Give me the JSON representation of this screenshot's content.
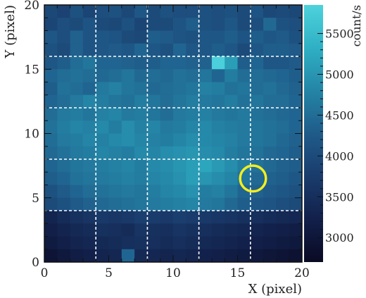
{
  "chart_data": {
    "type": "heatmap",
    "title": "",
    "xlabel": "X (pixel)",
    "ylabel": "Y (pixel)",
    "colorbar_label": "count/s",
    "xlim": [
      0,
      20
    ],
    "ylim": [
      0,
      20
    ],
    "x_ticks": [
      0,
      5,
      10,
      15,
      20
    ],
    "y_ticks": [
      0,
      5,
      10,
      15,
      20
    ],
    "colorbar_range": [
      2700,
      5850
    ],
    "colorbar_ticks": [
      3000,
      3500,
      4000,
      4500,
      5000,
      5500
    ],
    "colormap": [
      "#0a0a23",
      "#12204a",
      "#1a3c6c",
      "#1f5b8a",
      "#2485a6",
      "#2fb0c4",
      "#4ed2dc"
    ],
    "grid": {
      "on": true,
      "style": "white dashed",
      "x_lines": [
        4,
        8,
        12,
        16
      ],
      "y_lines": [
        4,
        8,
        12,
        16
      ]
    },
    "marker": {
      "shape": "circle",
      "center_x": 16.2,
      "center_y": 6.5,
      "radius": 1.0,
      "color": "#f2ee1f"
    },
    "rows_note": "values[0] is the top row (y 19-20), values[19] is the bottom row (y 0-1); each row has 20 pixels x 0..19",
    "values": [
      [
        3950,
        3850,
        4100,
        3900,
        4050,
        4100,
        3950,
        4200,
        4000,
        4100,
        4050,
        4050,
        4100,
        4050,
        4100,
        4000,
        4150,
        3950,
        4000,
        3950
      ],
      [
        3900,
        4050,
        4000,
        4150,
        4000,
        3950,
        4100,
        3900,
        4000,
        4000,
        4150,
        4300,
        4100,
        4050,
        4200,
        4000,
        4050,
        4450,
        4100,
        4050
      ],
      [
        4200,
        4050,
        4350,
        4150,
        4200,
        4150,
        4000,
        3950,
        4300,
        4250,
        4150,
        4100,
        4200,
        4200,
        4300,
        4150,
        4300,
        4200,
        4250,
        4100
      ],
      [
        4100,
        4000,
        4350,
        4150,
        4200,
        4250,
        4200,
        4400,
        4200,
        4100,
        4400,
        4200,
        4200,
        4300,
        4200,
        4000,
        4200,
        4300,
        4300,
        4250
      ],
      [
        4200,
        4300,
        4500,
        4600,
        4400,
        4400,
        4350,
        4300,
        4300,
        4400,
        4400,
        4350,
        4350,
        5800,
        5100,
        4300,
        4400,
        4200,
        4200,
        4250
      ],
      [
        4400,
        4500,
        4550,
        4500,
        4450,
        4500,
        4600,
        4450,
        4500,
        4450,
        4550,
        4500,
        4600,
        4400,
        4700,
        4500,
        4500,
        4450,
        4400,
        4300
      ],
      [
        4300,
        4550,
        4500,
        4400,
        4650,
        4750,
        4600,
        4550,
        4450,
        4500,
        4550,
        4600,
        4750,
        4700,
        4550,
        4600,
        4500,
        4550,
        4450,
        4350
      ],
      [
        4400,
        4500,
        4650,
        4800,
        4700,
        4600,
        4550,
        4700,
        4600,
        4500,
        4600,
        4700,
        4650,
        4600,
        4700,
        4550,
        4600,
        4500,
        4500,
        4400
      ],
      [
        4500,
        4650,
        4700,
        4600,
        4750,
        4800,
        4650,
        4700,
        4600,
        4500,
        4650,
        4700,
        4750,
        4650,
        4600,
        4650,
        4550,
        4500,
        4450,
        4400
      ],
      [
        4550,
        4700,
        4800,
        4750,
        4850,
        4700,
        4900,
        4750,
        4800,
        4650,
        4700,
        4800,
        4850,
        4750,
        4700,
        4650,
        4600,
        4550,
        4500,
        4400
      ],
      [
        4500,
        4650,
        4700,
        4800,
        4750,
        4850,
        4900,
        4800,
        4750,
        4700,
        4800,
        4900,
        4850,
        4800,
        4750,
        4650,
        4600,
        4550,
        4450,
        4350
      ],
      [
        4450,
        4550,
        4650,
        4700,
        4800,
        4750,
        4700,
        4850,
        4800,
        4900,
        4950,
        5000,
        4900,
        4850,
        4700,
        4600,
        4550,
        4450,
        4400,
        4300
      ],
      [
        4400,
        4500,
        4600,
        4650,
        4700,
        4750,
        4800,
        4700,
        4850,
        4900,
        5000,
        5100,
        5200,
        5050,
        4900,
        4700,
        4550,
        4450,
        4350,
        4300
      ],
      [
        4300,
        4400,
        4550,
        4600,
        4650,
        4700,
        4750,
        4700,
        4800,
        4850,
        4950,
        5100,
        5000,
        4900,
        4800,
        4600,
        4450,
        4350,
        4300,
        4200
      ],
      [
        4100,
        4250,
        4400,
        4500,
        4550,
        4600,
        4650,
        4600,
        4700,
        4800,
        4850,
        4950,
        4700,
        4750,
        4600,
        4400,
        4350,
        4250,
        4200,
        4100
      ],
      [
        4000,
        4100,
        4250,
        4350,
        4450,
        4500,
        4550,
        4600,
        4650,
        4700,
        4750,
        4800,
        4650,
        4600,
        4450,
        4300,
        4200,
        4150,
        4050,
        4000
      ],
      [
        3300,
        3450,
        3550,
        3600,
        3700,
        3650,
        3700,
        3800,
        3750,
        3700,
        3800,
        3750,
        3700,
        3650,
        3600,
        3550,
        3500,
        3450,
        3400,
        3350
      ],
      [
        3200,
        3300,
        3400,
        3450,
        3550,
        3500,
        3450,
        3600,
        3550,
        3500,
        3600,
        3550,
        3500,
        3450,
        3400,
        3350,
        3300,
        3250,
        3200,
        3150
      ],
      [
        3100,
        3200,
        3300,
        3350,
        3400,
        3450,
        3500,
        3550,
        3500,
        3450,
        3500,
        3450,
        3400,
        3350,
        3300,
        3250,
        3200,
        3150,
        3100,
        3050
      ],
      [
        2950,
        3050,
        3150,
        3200,
        3300,
        3350,
        4400,
        3400,
        3350,
        3300,
        3350,
        3300,
        3250,
        3200,
        3150,
        3100,
        3050,
        3000,
        2950,
        2900
      ]
    ]
  }
}
